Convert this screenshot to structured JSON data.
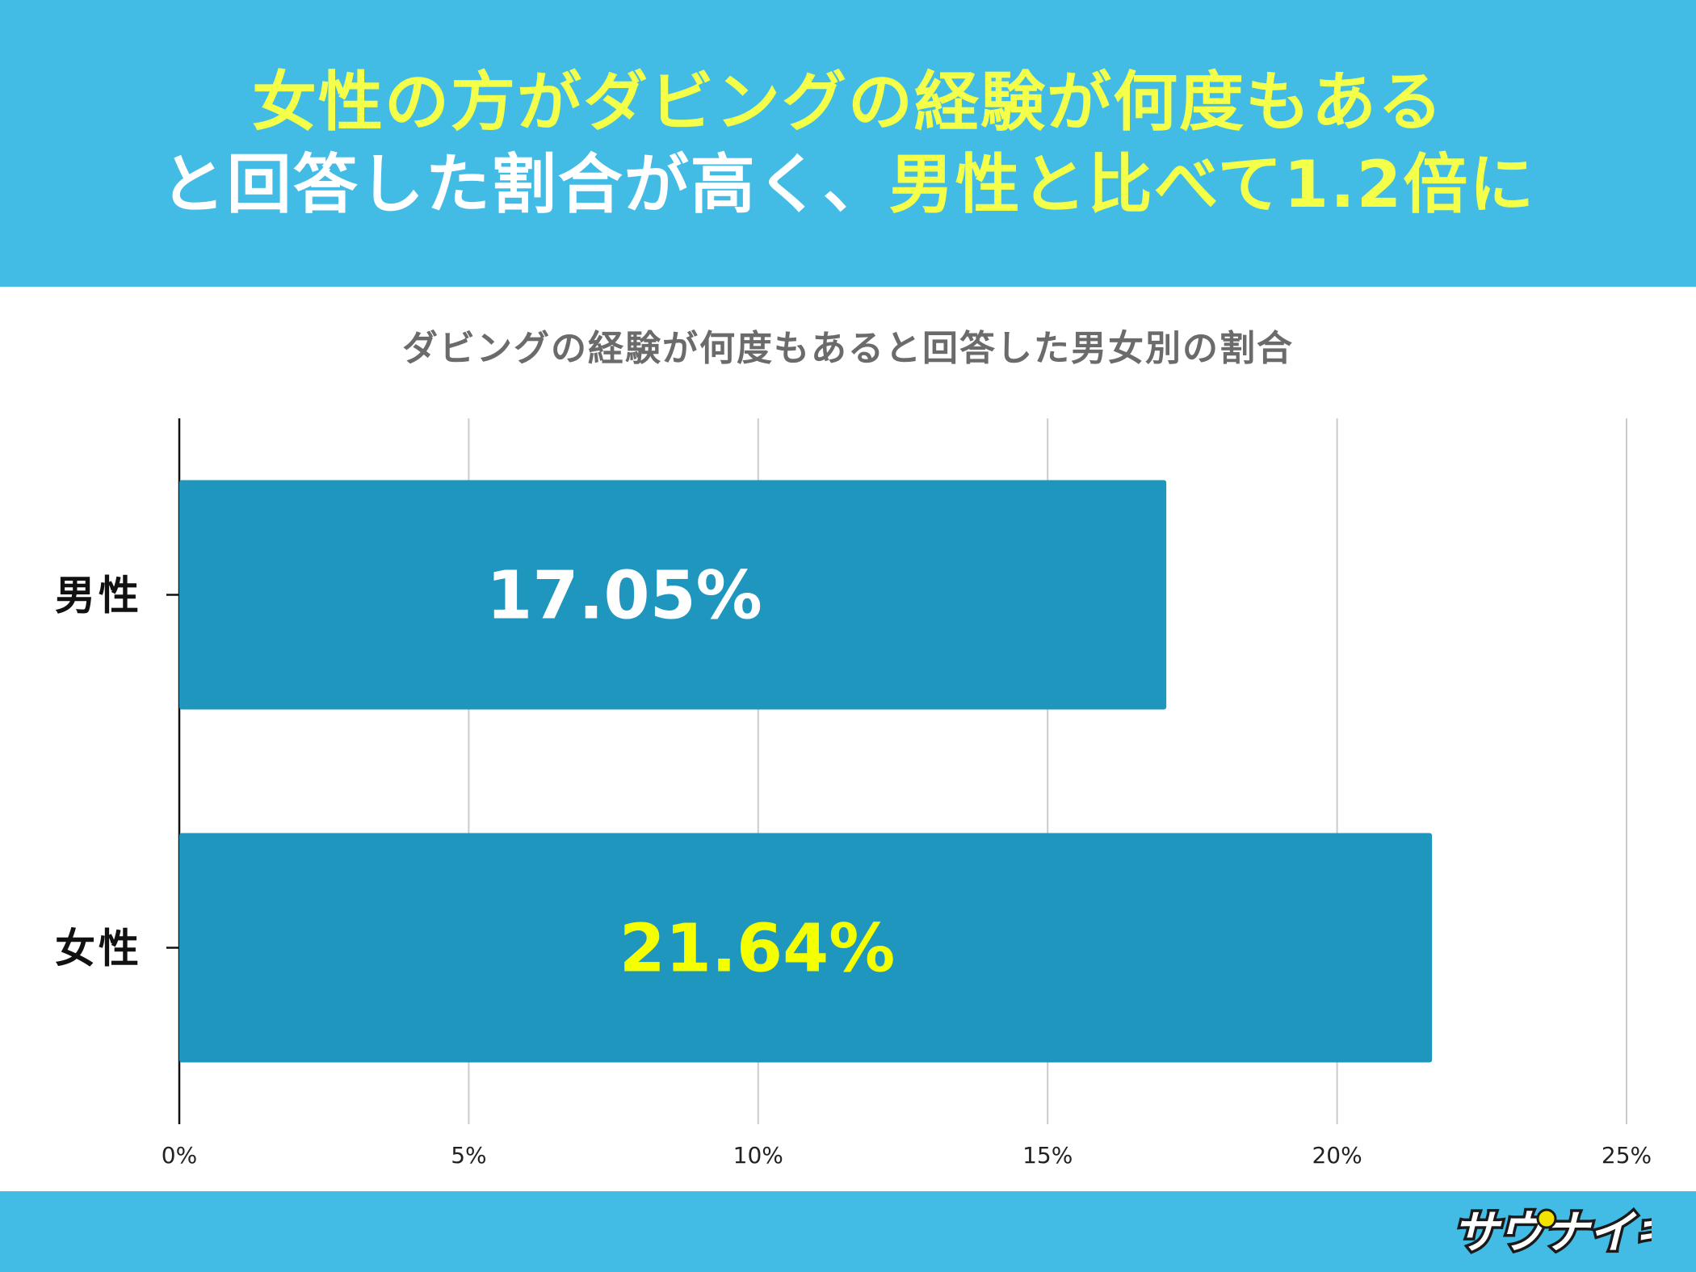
{
  "header": {
    "line1": "女性の方がダビングの経験が何度もある",
    "line2_part1": "と回答した割合が高く、",
    "line2_part2": "男性と比べて1.2倍に"
  },
  "chart_data": {
    "type": "bar",
    "orientation": "horizontal",
    "title": "ダビングの経験が何度もあると回答した男女別の割合",
    "categories": [
      "男性",
      "女性"
    ],
    "values": [
      17.05,
      21.64
    ],
    "data_labels": [
      "17.05%",
      "21.64%"
    ],
    "data_label_colors": [
      "#ffffff",
      "#f4ff00"
    ],
    "bar_color": "#1e96bd",
    "xlim": [
      0,
      25
    ],
    "xticks": [
      0,
      5,
      10,
      15,
      20,
      25
    ],
    "xtick_labels": [
      "0%",
      "5%",
      "10%",
      "15%",
      "20%",
      "25%"
    ],
    "grid": true
  },
  "footer": {
    "logo": "サウナイキ"
  },
  "colors": {
    "header_bg": "#43bce5",
    "highlight": "#f4ff4a"
  }
}
